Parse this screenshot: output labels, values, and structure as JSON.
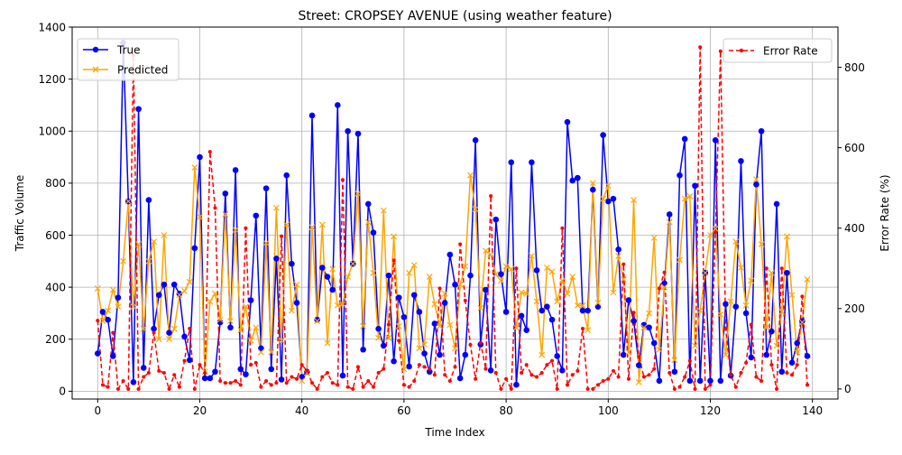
{
  "chart_data": {
    "type": "line",
    "title": "Street: CROPSEY AVENUE (using weather feature)",
    "xlabel": "Time Index",
    "ylabel": "Traffic Volume",
    "ylabel_right": "Error Rate (%)",
    "xlim": [
      -5,
      145
    ],
    "ylim": [
      -30,
      1400
    ],
    "ylim_right": [
      -25,
      900
    ],
    "x_ticks": [
      0,
      20,
      40,
      60,
      80,
      100,
      120,
      140
    ],
    "y_ticks": [
      0,
      200,
      400,
      600,
      800,
      1000,
      1200,
      1400
    ],
    "y_ticks_right": [
      0,
      200,
      400,
      600,
      800
    ],
    "grid": true,
    "legend_left": {
      "placement": "top-left",
      "entries": [
        "True",
        "Predicted"
      ]
    },
    "legend_right": {
      "placement": "top-right",
      "entries": [
        "Error Rate"
      ]
    },
    "colors": {
      "true": "#0000ff",
      "predicted": "#ffa500",
      "error": "#ff0000",
      "grid": "#b0b0b0"
    },
    "x": [
      0,
      1,
      2,
      3,
      4,
      5,
      6,
      7,
      8,
      9,
      10,
      11,
      12,
      13,
      14,
      15,
      16,
      17,
      18,
      19,
      20,
      21,
      22,
      23,
      24,
      25,
      26,
      27,
      28,
      29,
      30,
      31,
      32,
      33,
      34,
      35,
      36,
      37,
      38,
      39,
      40,
      41,
      42,
      43,
      44,
      45,
      46,
      47,
      48,
      49,
      50,
      51,
      52,
      53,
      54,
      55,
      56,
      57,
      58,
      59,
      60,
      61,
      62,
      63,
      64,
      65,
      66,
      67,
      68,
      69,
      70,
      71,
      72,
      73,
      74,
      75,
      76,
      77,
      78,
      79,
      80,
      81,
      82,
      83,
      84,
      85,
      86,
      87,
      88,
      89,
      90,
      91,
      92,
      93,
      94,
      95,
      96,
      97,
      98,
      99,
      100,
      101,
      102,
      103,
      104,
      105,
      106,
      107,
      108,
      109,
      110,
      111,
      112,
      113,
      114,
      115,
      116,
      117,
      118,
      119,
      120,
      121,
      122,
      123,
      124,
      125,
      126,
      127,
      128,
      129,
      130,
      131,
      132,
      133,
      134,
      135,
      136,
      137,
      138,
      139
    ],
    "series": [
      {
        "name": "True",
        "values": [
          145,
          305,
          275,
          135,
          360,
          1340,
          730,
          35,
          1085,
          90,
          735,
          240,
          370,
          410,
          225,
          410,
          375,
          210,
          120,
          550,
          900,
          50,
          50,
          75,
          265,
          760,
          245,
          850,
          85,
          65,
          350,
          675,
          165,
          780,
          85,
          510,
          45,
          830,
          490,
          340,
          55,
          75,
          1060,
          275,
          475,
          440,
          390,
          1100,
          60,
          1000,
          490,
          990,
          160,
          720,
          610,
          240,
          175,
          445,
          115,
          360,
          285,
          95,
          370,
          305,
          145,
          75,
          260,
          140,
          340,
          525,
          410,
          50,
          140,
          445,
          965,
          180,
          390,
          80,
          660,
          450,
          305,
          880,
          25,
          290,
          235,
          880,
          465,
          310,
          325,
          275,
          135,
          80,
          1035,
          810,
          820,
          310,
          310,
          775,
          325,
          985,
          730,
          740,
          545,
          140,
          350,
          270,
          100,
          255,
          245,
          185,
          40,
          415,
          680,
          75,
          830,
          970,
          40,
          790,
          40,
          455,
          40,
          965,
          40,
          335,
          60,
          325,
          885,
          300,
          130,
          795,
          1000,
          140,
          230,
          720,
          75,
          455,
          110,
          185,
          270,
          135
        ]
      },
      {
        "name": "Predicted",
        "values": [
          395,
          270,
          310,
          390,
          325,
          500,
          730,
          325,
          565,
          240,
          500,
          575,
          200,
          600,
          200,
          240,
          370,
          385,
          420,
          860,
          670,
          75,
          345,
          375,
          275,
          680,
          270,
          620,
          235,
          325,
          195,
          245,
          150,
          570,
          150,
          705,
          195,
          640,
          310,
          410,
          40,
          70,
          630,
          270,
          640,
          185,
          470,
          330,
          335,
          440,
          490,
          760,
          250,
          650,
          455,
          205,
          695,
          205,
          595,
          250,
          85,
          455,
          485,
          165,
          180,
          440,
          335,
          250,
          375,
          255,
          165,
          410,
          480,
          830,
          700,
          320,
          540,
          525,
          450,
          425,
          480,
          470,
          245,
          380,
          375,
          520,
          345,
          140,
          475,
          460,
          345,
          425,
          375,
          440,
          330,
          330,
          235,
          800,
          340,
          740,
          790,
          380,
          520,
          430,
          150,
          735,
          35,
          245,
          300,
          590,
          160,
          400,
          650,
          120,
          505,
          740,
          750,
          175,
          310,
          455,
          600,
          625,
          295,
          140,
          345,
          575,
          475,
          330,
          425,
          815,
          565,
          245,
          455,
          175,
          305,
          595,
          370,
          150,
          265,
          430
        ]
      },
      {
        "name": "Error Rate",
        "values": [
          170,
          10,
          5,
          140,
          0,
          20,
          0,
          830,
          0,
          30,
          40,
          140,
          45,
          40,
          0,
          35,
          5,
          70,
          150,
          0,
          60,
          40,
          590,
          450,
          20,
          15,
          15,
          20,
          10,
          400,
          60,
          65,
          5,
          20,
          10,
          15,
          380,
          15,
          30,
          25,
          60,
          45,
          15,
          0,
          30,
          40,
          15,
          10,
          520,
          5,
          0,
          55,
          5,
          20,
          5,
          40,
          50,
          160,
          320,
          120,
          10,
          5,
          20,
          60,
          55,
          50,
          35,
          250,
          35,
          20,
          55,
          360,
          220,
          110,
          25,
          115,
          50,
          480,
          40,
          0,
          25,
          0,
          300,
          40,
          60,
          35,
          30,
          40,
          60,
          70,
          0,
          400,
          10,
          35,
          45,
          150,
          0,
          0,
          10,
          20,
          25,
          45,
          30,
          310,
          25,
          190,
          80,
          30,
          35,
          50,
          250,
          290,
          40,
          0,
          5,
          30,
          70,
          0,
          850,
          0,
          10,
          390,
          840,
          150,
          35,
          5,
          40,
          65,
          160,
          30,
          20,
          300,
          60,
          0,
          300,
          40,
          35,
          60,
          230,
          10
        ]
      }
    ]
  }
}
